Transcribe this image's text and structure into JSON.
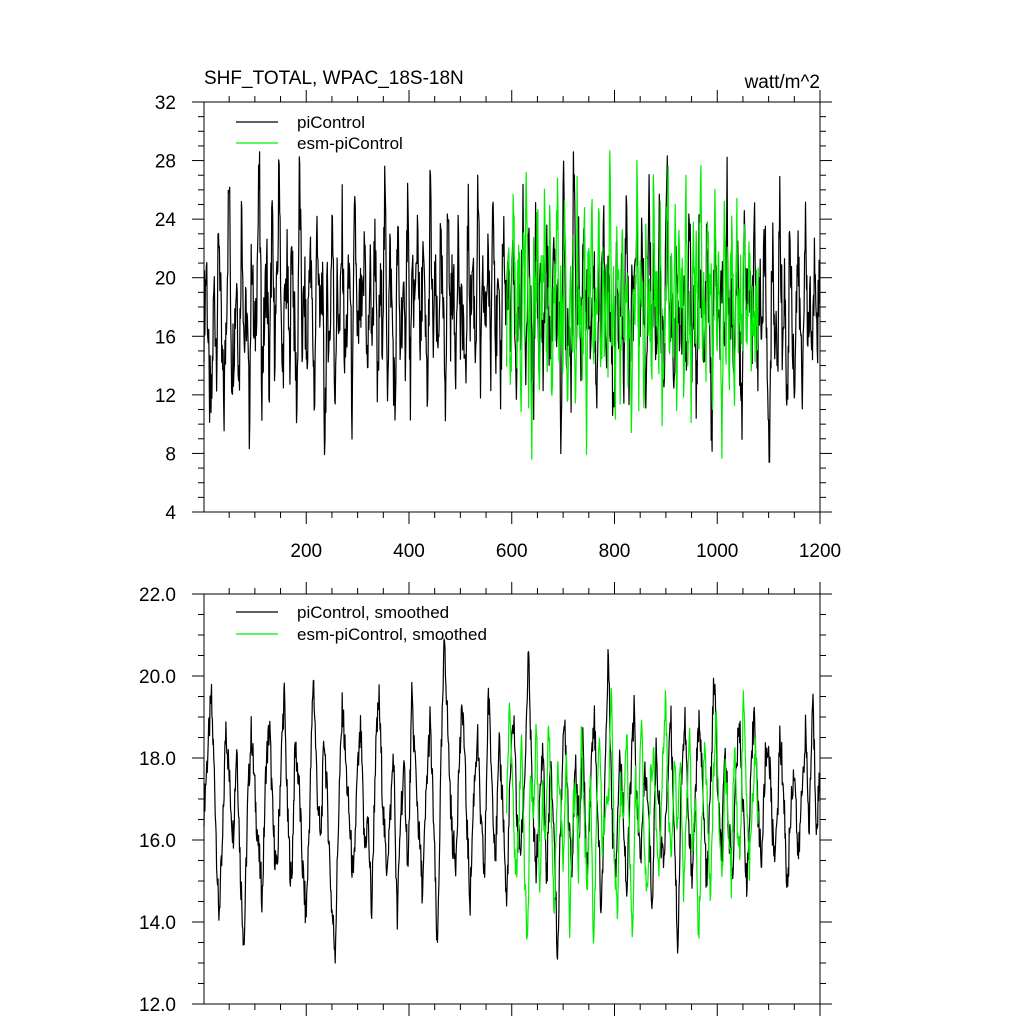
{
  "colors": {
    "piControl": "#000000",
    "esm-piControl": "#00ee00",
    "background": "#ffffff"
  },
  "chart_data": [
    {
      "type": "line",
      "title": "SHF_TOTAL, WPAC_18S-18N",
      "units": "watt/m^2",
      "xlim": [
        1,
        1200
      ],
      "ylim": [
        4,
        32
      ],
      "x_ticks": [
        200,
        400,
        600,
        800,
        1000,
        1200
      ],
      "y_ticks": [
        4,
        8,
        12,
        16,
        20,
        24,
        28,
        32
      ],
      "legend_placement": "top-left",
      "series": [
        {
          "name": "piControl",
          "x_range": [
            1,
            1200
          ],
          "mean": 16.8,
          "y_range": [
            7.4,
            28.6
          ],
          "values": [
            17.2,
            21.3,
            12.4,
            10.8,
            19.5,
            15.1,
            23.8,
            14.6,
            11.2,
            18.9,
            26.8,
            13.7,
            16.2,
            20.4,
            12.9,
            25.6,
            15.3,
            18.1,
            10.2,
            22.7,
            14.4,
            19.8,
            27.2,
            13.1,
            16.9,
            21.5,
            11.8,
            24.3,
            15.7,
            18.5,
            28.4,
            12.6,
            17.3,
            20.9,
            14.1,
            23.1,
            16.4,
            10.9,
            27.9,
            15.6,
            19.2,
            13.4,
            22.4,
            17.8,
            11.5,
            24.9,
            16.1,
            20.2,
            8.9,
            18.7,
            14.8,
            25.3,
            12.2,
            19.6,
            15.9,
            23.6,
            13.8,
            17.5,
            21.1,
            9.8,
            26.5,
            14.2,
            18.3,
            16.7,
            22.9,
            12.7,
            20.6,
            15.4,
            24.1,
            11.1,
            19.1,
            17.1,
            25.8,
            13.3,
            21.7,
            16.6,
            10.5,
            23.4,
            15.2,
            18.8,
            14.9,
            26.1,
            12.3,
            20.1,
            17.6,
            24.6,
            13.6,
            22.1,
            16.3,
            11.7,
            26.4,
            15.5,
            19.4,
            14.3,
            21.9,
            17.9,
            12.1,
            25.1,
            16.8,
            20.5,
            13.9,
            23.7,
            15.8,
            18.2,
            11.3,
            24.4,
            17.4,
            21.2,
            14.5,
            26.3,
            12.8,
            19.9,
            16.5,
            22.6,
            13.2,
            28.3,
            15.1,
            18.6,
            12.5,
            24.2,
            17.7,
            20.8,
            14.7,
            23.3,
            11.9,
            19.3,
            16.2,
            25.4,
            13.5,
            21.8,
            17.2,
            10.7,
            24.7,
            15.6,
            20.3,
            14.1,
            22.5,
            18.4,
            12.4,
            23.9,
            16.9,
            19.7,
            9.6,
            26.2,
            15.3,
            18.1,
            13.7,
            27.6,
            17.1,
            21.4,
            12.9,
            24.1,
            16.5,
            20.7,
            14.6,
            22.8,
            11.6,
            18.9,
            17.5,
            25.2,
            13.4,
            21.1,
            16.1,
            10.4,
            23.2,
            15.9,
            19.5,
            14.2,
            26.9,
            12.2,
            18.6,
            16.8,
            24.8,
            13.9,
            22.2,
            17.3,
            11.4,
            25.7,
            15.4,
            20.4,
            14.4,
            23.5,
            16.7,
            12.6,
            28.1,
            17.8,
            19.2,
            13.1,
            22.3,
            16.2,
            17.4,
            20.1,
            12.1,
            24.6,
            15.5,
            18.3,
            11.2,
            23.4,
            17.6,
            13.2,
            21.9,
            16.4,
            9.1,
            22.7,
            17.9,
            14.8,
            20.6,
            12.7,
            25.9,
            16.3,
            18.8,
            13.6,
            21.5,
            15.2,
            11.8,
            24.3,
            17.4,
            19.1,
            14.1,
            26.5,
            12.4,
            20.2,
            16.1,
            23.1,
            13.8,
            7.4,
            22.4,
            17.2,
            12.9,
            25.1,
            15.8,
            19.6,
            10.2,
            23.8,
            16.5,
            13.4,
            21.3,
            17.7,
            11.6,
            24.9,
            15.3,
            18.7,
            14.6,
            22.1,
            16.9,
            20.4
          ]
        },
        {
          "name": "esm-piControl",
          "x_range": [
            590,
            1080
          ],
          "mean": 16.9,
          "y_range": [
            7.6,
            28.7
          ],
          "values": [
            15.8,
            23.4,
            12.1,
            19.6,
            26.2,
            13.7,
            17.9,
            21.8,
            10.4,
            24.6,
            16.3,
            28.4,
            12.9,
            18.2,
            7.6,
            22.7,
            15.1,
            25.8,
            11.3,
            20.4,
            17.6,
            26.9,
            13.2,
            19.1,
            23.6,
            9.8,
            21.2,
            16.7,
            27.4,
            12.5,
            18.9,
            14.3,
            24.1,
            17.2,
            11.1,
            22.9,
            15.6,
            20.8,
            10.6,
            25.3,
            16.1,
            19.4,
            13.9,
            23.2,
            8.9,
            21.6,
            17.4,
            26.6,
            12.8,
            18.5,
            15.2,
            24.8,
            11.7,
            20.1,
            16.8,
            22.3,
            13.4,
            27.2,
            14.7,
            19.8,
            10.9,
            23.7,
            17.1,
            12.2,
            25.5,
            15.9,
            21.4,
            14.1,
            18.7,
            9.4,
            22.6,
            16.4,
            28.2,
            13.1,
            20.6,
            17.8,
            11.5,
            24.3,
            15.3,
            19.2,
            12.6,
            26.1,
            16.6,
            21.1,
            14.4,
            23.9,
            10.1,
            18.3,
            17.5,
            28.1,
            13.6,
            20.3,
            15.7,
            25.1,
            11.9,
            22.2,
            16.2,
            19.9,
            12.3,
            26.4,
            14.9,
            18.8,
            10.7,
            23.5,
            17.3,
            21.7,
            13.8,
            28.7,
            15.4,
            20.2,
            12.4,
            24.5,
            16.9,
            19.5,
            11.2,
            26.8,
            14.2,
            22.4,
            17.7,
            9.2,
            25.6,
            15.6,
            21.3,
            13.3,
            23.1,
            18.1,
            12.7,
            24.9,
            16.1,
            20.7,
            14.8,
            22.8,
            17.0,
            15.5,
            21.9,
            13.5,
            19.3,
            16.5,
            17.6,
            18.4
          ]
        }
      ]
    },
    {
      "type": "line",
      "xlim": [
        1,
        1200
      ],
      "ylim": [
        12.0,
        22.0
      ],
      "y_ticks": [
        "12.0",
        "14.0",
        "16.0",
        "18.0",
        "20.0",
        "22.0"
      ],
      "x_ticks_unlabeled": [
        200,
        400,
        600,
        800,
        1000,
        1200
      ],
      "legend_placement": "top-left",
      "series": [
        {
          "name": "piControl, smoothed",
          "x_range": [
            1,
            1200
          ],
          "mean": 16.8,
          "y_range": [
            13.0,
            21.0
          ],
          "values": [
            16.8,
            18.1,
            19.5,
            17.2,
            14.1,
            15.6,
            18.9,
            17.4,
            16.1,
            18.4,
            15.2,
            13.4,
            16.9,
            18.7,
            17.1,
            15.7,
            14.6,
            17.8,
            18.8,
            16.2,
            15.1,
            17.6,
            19.6,
            16.4,
            14.8,
            18.3,
            17.5,
            15.4,
            14.1,
            16.7,
            20.1,
            17.3,
            15.9,
            18.6,
            16.6,
            14.4,
            13.3,
            16.9,
            19.3,
            17.7,
            16.3,
            14.9,
            17.4,
            18.7,
            15.8,
            16.5,
            14.2,
            17.9,
            19.5,
            17.1,
            15.3,
            16.4,
            18.2,
            13.9,
            16.8,
            17.6,
            15.2,
            19.4,
            17.8,
            16.1,
            14.7,
            17.2,
            18.9,
            16.5,
            13.1,
            17.7,
            21.0,
            18.4,
            16.2,
            15.4,
            17.9,
            19.3,
            16.7,
            14.5,
            17.1,
            18.6,
            16.3,
            15.1,
            19.7,
            17.4,
            15.6,
            18.2,
            16.9,
            14.3,
            17.5,
            19.1,
            16.1,
            15.8,
            17.6,
            20.5,
            17.3,
            15.2,
            16.6,
            18.4,
            14.9,
            17.8,
            16.4,
            13.0,
            17.2,
            18.9,
            16.7,
            15.5,
            17.9,
            16.2,
            18.6,
            15.1,
            17.3,
            19.2,
            16.8,
            14.1,
            17.6,
            20.7,
            16.3,
            15.4,
            18.1,
            16.9,
            14.6,
            17.4,
            19.1,
            16.2,
            15.7,
            17.8,
            16.5,
            14.3,
            18.3,
            16.6,
            15.3,
            17.1,
            19.2,
            16.4,
            13.3,
            17.7,
            18.9,
            16.1,
            15.2,
            17.5,
            19.1,
            16.7,
            14.8,
            17.4,
            20.1,
            16.9,
            15.6,
            18.2,
            16.3,
            15.1,
            17.8,
            18.8,
            16.5,
            14.9,
            17.2,
            19.4,
            16.6,
            15.5,
            17.9,
            18.3,
            16.1,
            15.8,
            18.5,
            17.3,
            14.7,
            16.8,
            17.9,
            15.4,
            17.1,
            18.7,
            16.2,
            19.5,
            16.4,
            17.6
          ]
        },
        {
          "name": "esm-piControl, smoothed",
          "x_range": [
            590,
            1080
          ],
          "mean": 16.6,
          "y_range": [
            13.2,
            19.7
          ],
          "values": [
            16.9,
            19.3,
            17.4,
            14.9,
            16.2,
            18.7,
            15.1,
            13.4,
            17.8,
            16.5,
            18.9,
            14.6,
            17.2,
            15.8,
            19.1,
            16.3,
            14.1,
            17.7,
            16.8,
            15.3,
            18.4,
            13.9,
            16.6,
            17.5,
            15.2,
            19.0,
            16.1,
            14.8,
            17.9,
            13.2,
            16.4,
            18.6,
            15.6,
            17.1,
            16.9,
            19.7,
            15.4,
            14.2,
            17.3,
            16.7,
            18.8,
            15.9,
            13.6,
            17.6,
            16.2,
            19.2,
            15.7,
            14.5,
            17.4,
            18.1,
            16.3,
            15.1,
            17.8,
            19.5,
            16.8,
            15.4,
            18.2,
            16.1,
            17.9,
            14.7,
            16.6,
            18.9,
            15.5,
            17.2,
            13.4,
            15.9,
            18.4,
            16.7,
            14.3,
            17.5,
            19.1,
            16.2,
            15.3,
            17.8,
            16.5,
            14.9,
            18.6,
            16.3,
            15.7,
            19.6,
            17.1,
            15.2,
            16.9,
            18.3,
            16.4
          ]
        }
      ]
    }
  ]
}
